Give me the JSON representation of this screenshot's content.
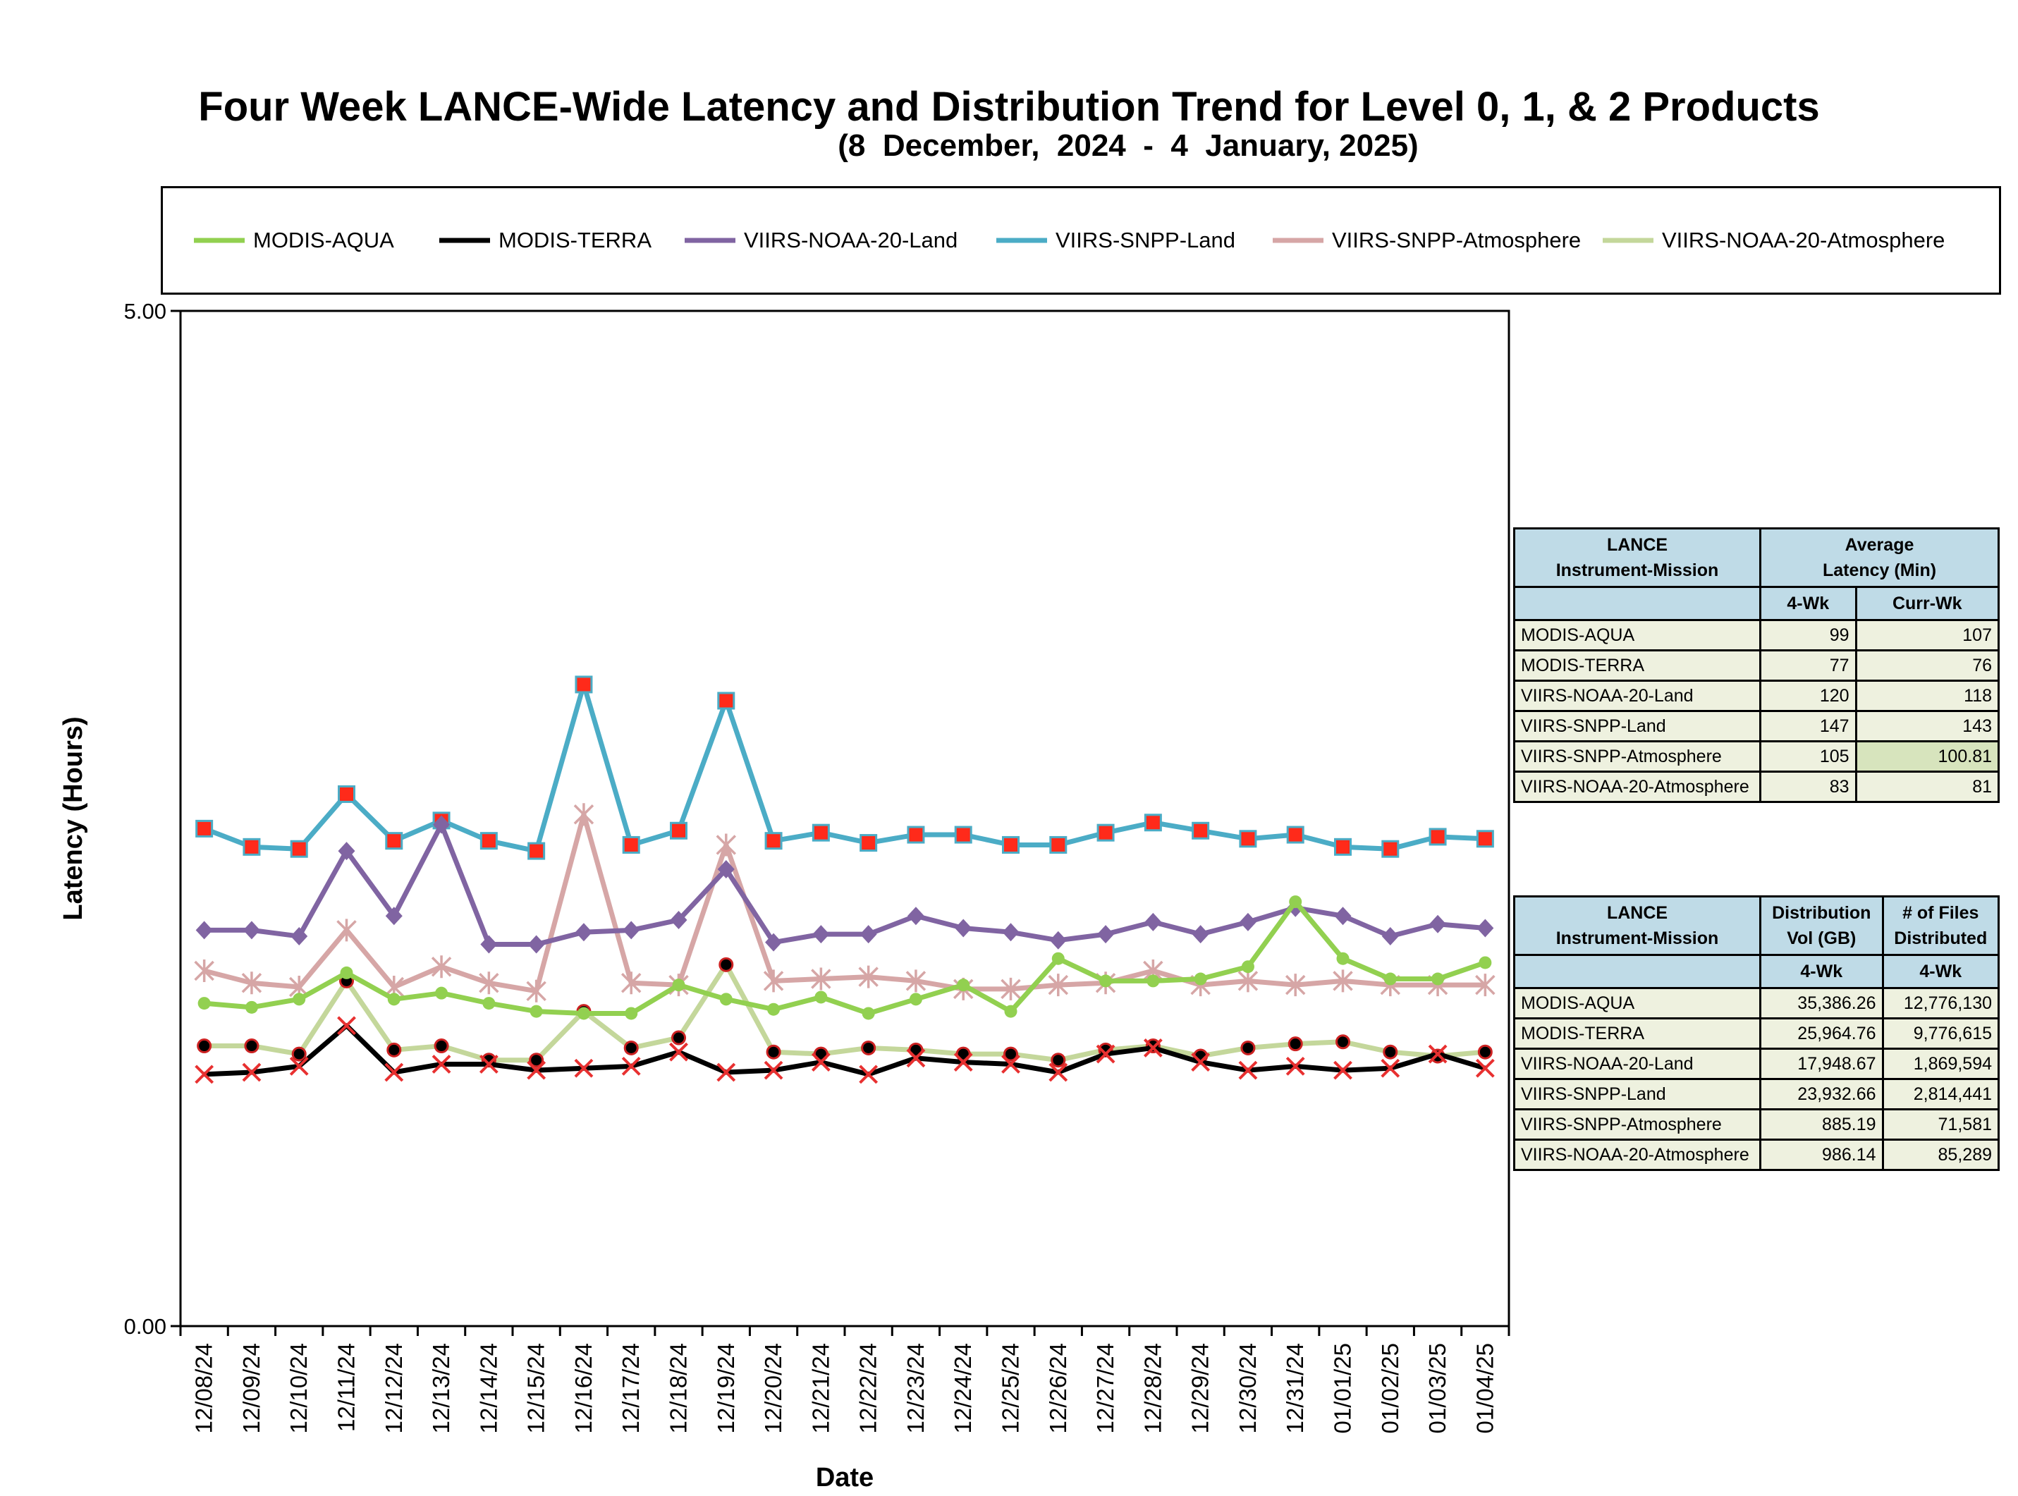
{
  "chart_data": {
    "type": "line",
    "title": "Four Week LANCE-Wide Latency and Distribution Trend for Level 0, 1, & 2 Products",
    "subtitle": "(8  December,  2024  -  4  January, 2025)",
    "xlabel": "Date",
    "ylabel": "Latency (Hours)",
    "ylim": [
      0,
      5
    ],
    "y_tick_labels": [
      "5.00",
      "0.00"
    ],
    "grid": false,
    "legend_position": "top",
    "categories": [
      "12/08/24",
      "12/09/24",
      "12/10/24",
      "12/11/24",
      "12/12/24",
      "12/13/24",
      "12/14/24",
      "12/15/24",
      "12/16/24",
      "12/17/24",
      "12/18/24",
      "12/19/24",
      "12/20/24",
      "12/21/24",
      "12/22/24",
      "12/23/24",
      "12/24/24",
      "12/25/24",
      "12/26/24",
      "12/27/24",
      "12/28/24",
      "12/29/24",
      "12/30/24",
      "12/31/24",
      "01/01/25",
      "01/02/25",
      "01/03/25",
      "01/04/25"
    ],
    "series": [
      {
        "name": "MODIS-AQUA",
        "color": "#92d050",
        "marker": "circle",
        "values": [
          1.59,
          1.57,
          1.61,
          1.74,
          1.61,
          1.64,
          1.59,
          1.55,
          1.54,
          1.54,
          1.68,
          1.61,
          1.56,
          1.62,
          1.54,
          1.61,
          1.68,
          1.55,
          1.81,
          1.7,
          1.7,
          1.71,
          1.77,
          2.09,
          1.81,
          1.71,
          1.71,
          1.79
        ]
      },
      {
        "name": "MODIS-TERRA",
        "color": "#000000",
        "marker": "x",
        "values": [
          1.24,
          1.25,
          1.28,
          1.48,
          1.25,
          1.29,
          1.29,
          1.26,
          1.27,
          1.28,
          1.35,
          1.25,
          1.26,
          1.3,
          1.24,
          1.32,
          1.3,
          1.29,
          1.25,
          1.34,
          1.37,
          1.3,
          1.26,
          1.28,
          1.26,
          1.27,
          1.34,
          1.27
        ]
      },
      {
        "name": "VIIRS-NOAA-20-Land",
        "color": "#8064a2",
        "marker": "diamond",
        "values": [
          1.95,
          1.95,
          1.92,
          2.34,
          2.02,
          2.47,
          1.88,
          1.88,
          1.94,
          1.95,
          2.0,
          2.25,
          1.89,
          1.93,
          1.93,
          2.02,
          1.96,
          1.94,
          1.9,
          1.93,
          1.99,
          1.93,
          1.99,
          2.06,
          2.02,
          1.92,
          1.98,
          1.96
        ]
      },
      {
        "name": "VIIRS-SNPP-Land",
        "color": "#4bacc6",
        "marker": "square",
        "values": [
          2.45,
          2.36,
          2.35,
          2.62,
          2.39,
          2.49,
          2.39,
          2.34,
          3.16,
          2.37,
          2.44,
          3.08,
          2.39,
          2.43,
          2.38,
          2.42,
          2.42,
          2.37,
          2.37,
          2.43,
          2.48,
          2.44,
          2.4,
          2.42,
          2.36,
          2.35,
          2.41,
          2.4
        ]
      },
      {
        "name": "VIIRS-SNPP-Atmosphere",
        "color": "#d6a6a6",
        "marker": "star",
        "values": [
          1.75,
          1.69,
          1.67,
          1.95,
          1.67,
          1.77,
          1.69,
          1.65,
          2.52,
          1.69,
          1.68,
          2.37,
          1.7,
          1.71,
          1.72,
          1.7,
          1.66,
          1.66,
          1.68,
          1.69,
          1.75,
          1.68,
          1.7,
          1.68,
          1.7,
          1.68,
          1.68,
          1.68
        ]
      },
      {
        "name": "VIIRS-NOAA-20-Atmosphere",
        "color": "#c4d79b",
        "marker": "dot",
        "values": [
          1.38,
          1.38,
          1.34,
          1.7,
          1.36,
          1.38,
          1.31,
          1.31,
          1.55,
          1.37,
          1.42,
          1.78,
          1.35,
          1.34,
          1.37,
          1.36,
          1.34,
          1.34,
          1.31,
          1.36,
          1.38,
          1.33,
          1.37,
          1.39,
          1.4,
          1.35,
          1.33,
          1.35
        ]
      }
    ]
  },
  "latency_table": {
    "col1_header_line1": "LANCE",
    "col1_header_line2": "Instrument-Mission",
    "col2_header_line1": "Average",
    "col2_header_line2": "Latency (Min)",
    "sub_col1": "4-Wk",
    "sub_col2": "Curr-Wk",
    "rows": [
      {
        "name": "MODIS-AQUA",
        "four_wk": "99",
        "curr_wk": "107"
      },
      {
        "name": "MODIS-TERRA",
        "four_wk": "77",
        "curr_wk": "76"
      },
      {
        "name": "VIIRS-NOAA-20-Land",
        "four_wk": "120",
        "curr_wk": "118"
      },
      {
        "name": "VIIRS-SNPP-Land",
        "four_wk": "147",
        "curr_wk": "143"
      },
      {
        "name": "VIIRS-SNPP-Atmosphere",
        "four_wk": "105",
        "curr_wk": "100.81"
      },
      {
        "name": "VIIRS-NOAA-20-Atmosphere",
        "four_wk": "83",
        "curr_wk": "81"
      }
    ]
  },
  "distribution_table": {
    "col1_header_line1": "LANCE",
    "col1_header_line2": "Instrument-Mission",
    "col2_header_line1": "Distribution",
    "col2_header_line2": "Vol (GB)",
    "col3_header_line1": "# of Files",
    "col3_header_line2": "Distributed",
    "sub_col1": "4-Wk",
    "sub_col2": "4-Wk",
    "rows": [
      {
        "name": "MODIS-AQUA",
        "vol": "35,386.26",
        "files": "12,776,130"
      },
      {
        "name": "MODIS-TERRA",
        "vol": "25,964.76",
        "files": "9,776,615"
      },
      {
        "name": "VIIRS-NOAA-20-Land",
        "vol": "17,948.67",
        "files": "1,869,594"
      },
      {
        "name": "VIIRS-SNPP-Land",
        "vol": "23,932.66",
        "files": "2,814,441"
      },
      {
        "name": "VIIRS-SNPP-Atmosphere",
        "vol": "885.19",
        "files": "71,581"
      },
      {
        "name": "VIIRS-NOAA-20-Atmosphere",
        "vol": "986.14",
        "files": "85,289"
      }
    ]
  }
}
